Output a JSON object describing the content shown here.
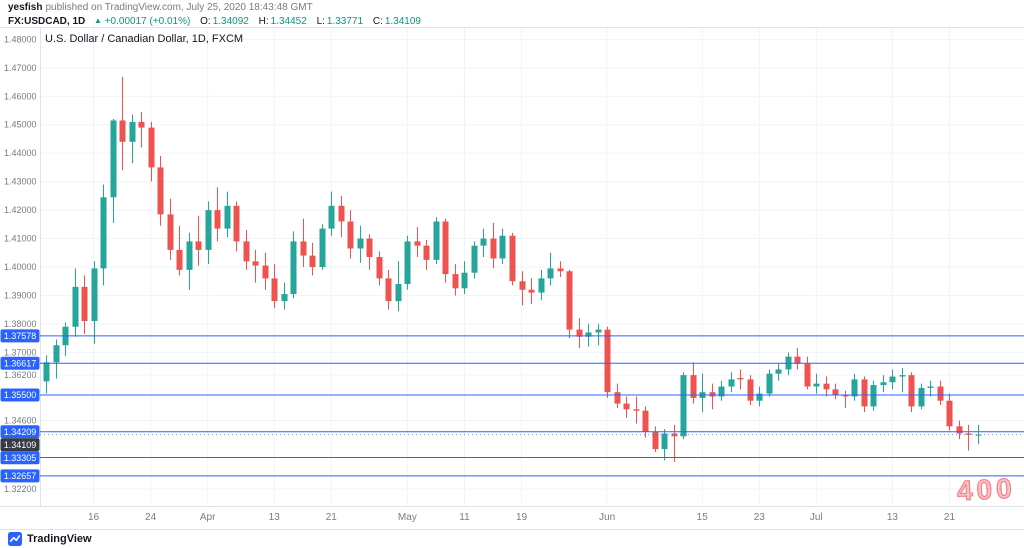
{
  "header": {
    "author": "yesfish",
    "published": "published on TradingView.com, July 25, 2020 18:43:48 GMT",
    "symbol": "FX:USDCAD, 1D",
    "arrow": "▲",
    "change": "+0.00017 (+0.01%)",
    "ohlc": {
      "o_label": "O:",
      "o_value": "1.34092",
      "h_label": "H:",
      "h_value": "1.34452",
      "l_label": "L:",
      "l_value": "1.33771",
      "c_label": "C:",
      "c_value": "1.34109"
    }
  },
  "legend": {
    "title": "U.S. Dollar / Canadian Dollar, 1D, FXCM"
  },
  "footer": {
    "brand": "TradingView"
  },
  "watermark": {
    "text": "400"
  },
  "colors": {
    "up": "#26a69a",
    "down": "#ef5350",
    "line_blue": "#2962ff",
    "grid": "#f0f3fa",
    "border": "#e0e3eb",
    "axis_text": "#787b86",
    "dark": "#131722",
    "green_text": "#089981",
    "badge_last": "#363a45"
  },
  "chart_data": {
    "type": "candlestick",
    "title": "U.S. Dollar / Canadian Dollar",
    "symbol": "USDCAD",
    "interval": "1D",
    "exchange": "FXCM",
    "grid": true,
    "ylim": [
      1.316,
      1.484
    ],
    "y_ticks": [
      {
        "price": 1.48,
        "label": "1.48000"
      },
      {
        "price": 1.47,
        "label": "1.47000"
      },
      {
        "price": 1.46,
        "label": "1.46000"
      },
      {
        "price": 1.45,
        "label": "1.45000"
      },
      {
        "price": 1.44,
        "label": "1.44000"
      },
      {
        "price": 1.43,
        "label": "1.43000"
      },
      {
        "price": 1.42,
        "label": "1.42000"
      },
      {
        "price": 1.41,
        "label": "1.41000"
      },
      {
        "price": 1.4,
        "label": "1.40000"
      },
      {
        "price": 1.39,
        "label": "1.39000"
      },
      {
        "price": 1.38,
        "label": "1.38000"
      },
      {
        "price": 1.37,
        "label": "1.37000"
      },
      {
        "price": 1.362,
        "label": "1.36200"
      },
      {
        "price": 1.346,
        "label": "1.34600"
      },
      {
        "price": 1.322,
        "label": "1.32200"
      }
    ],
    "x_ticks": [
      {
        "index": 5,
        "label": "16"
      },
      {
        "index": 11,
        "label": "24"
      },
      {
        "index": 17,
        "label": "Apr"
      },
      {
        "index": 24,
        "label": "13"
      },
      {
        "index": 30,
        "label": "21"
      },
      {
        "index": 38,
        "label": "May"
      },
      {
        "index": 44,
        "label": "11"
      },
      {
        "index": 50,
        "label": "19"
      },
      {
        "index": 59,
        "label": "Jun"
      },
      {
        "index": 69,
        "label": "15"
      },
      {
        "index": 75,
        "label": "23"
      },
      {
        "index": 81,
        "label": "Jul"
      },
      {
        "index": 89,
        "label": "13"
      },
      {
        "index": 95,
        "label": "21"
      }
    ],
    "price_lines": [
      {
        "price": 1.37578,
        "label": "1.37578"
      },
      {
        "price": 1.36617,
        "label": "1.36617"
      },
      {
        "price": 1.355,
        "label": "1.35500"
      },
      {
        "price": 1.34209,
        "label": "1.34209"
      },
      {
        "price": 1.33305,
        "label": "1.33305"
      },
      {
        "price": 1.32657,
        "label": "1.32657"
      }
    ],
    "last_price": {
      "price": 1.34109,
      "label": "1.34109"
    },
    "dates": [
      "2020-03-09",
      "2020-03-10",
      "2020-03-11",
      "2020-03-12",
      "2020-03-13",
      "2020-03-16",
      "2020-03-17",
      "2020-03-18",
      "2020-03-19",
      "2020-03-20",
      "2020-03-23",
      "2020-03-24",
      "2020-03-25",
      "2020-03-26",
      "2020-03-27",
      "2020-03-30",
      "2020-03-31",
      "2020-04-01",
      "2020-04-02",
      "2020-04-03",
      "2020-04-06",
      "2020-04-07",
      "2020-04-08",
      "2020-04-09",
      "2020-04-13",
      "2020-04-14",
      "2020-04-15",
      "2020-04-16",
      "2020-04-17",
      "2020-04-20",
      "2020-04-21",
      "2020-04-22",
      "2020-04-23",
      "2020-04-24",
      "2020-04-27",
      "2020-04-28",
      "2020-04-29",
      "2020-04-30",
      "2020-05-01",
      "2020-05-04",
      "2020-05-05",
      "2020-05-06",
      "2020-05-07",
      "2020-05-08",
      "2020-05-11",
      "2020-05-12",
      "2020-05-13",
      "2020-05-14",
      "2020-05-15",
      "2020-05-18",
      "2020-05-19",
      "2020-05-20",
      "2020-05-21",
      "2020-05-22",
      "2020-05-25",
      "2020-05-26",
      "2020-05-27",
      "2020-05-28",
      "2020-05-29",
      "2020-06-01",
      "2020-06-02",
      "2020-06-03",
      "2020-06-04",
      "2020-06-05",
      "2020-06-08",
      "2020-06-09",
      "2020-06-10",
      "2020-06-11",
      "2020-06-12",
      "2020-06-15",
      "2020-06-16",
      "2020-06-17",
      "2020-06-18",
      "2020-06-19",
      "2020-06-22",
      "2020-06-23",
      "2020-06-24",
      "2020-06-25",
      "2020-06-26",
      "2020-06-29",
      "2020-06-30",
      "2020-07-01",
      "2020-07-02",
      "2020-07-03",
      "2020-07-06",
      "2020-07-07",
      "2020-07-08",
      "2020-07-09",
      "2020-07-10",
      "2020-07-13",
      "2020-07-14",
      "2020-07-15",
      "2020-07-16",
      "2020-07-17",
      "2020-07-20",
      "2020-07-21",
      "2020-07-22",
      "2020-07-23",
      "2020-07-24"
    ],
    "ohlc": [
      [
        1.3598,
        1.369,
        1.3555,
        1.3665
      ],
      [
        1.3665,
        1.3745,
        1.3608,
        1.3725
      ],
      [
        1.3725,
        1.3805,
        1.3688,
        1.379
      ],
      [
        1.379,
        1.3995,
        1.3755,
        1.393
      ],
      [
        1.393,
        1.397,
        1.3765,
        1.381
      ],
      [
        1.381,
        1.402,
        1.373,
        1.3995
      ],
      [
        1.3995,
        1.429,
        1.3935,
        1.4245
      ],
      [
        1.4245,
        1.452,
        1.4155,
        1.4515
      ],
      [
        1.4515,
        1.4668,
        1.434,
        1.444
      ],
      [
        1.444,
        1.4535,
        1.4365,
        1.451
      ],
      [
        1.451,
        1.4545,
        1.442,
        1.449
      ],
      [
        1.449,
        1.451,
        1.43,
        1.435
      ],
      [
        1.435,
        1.439,
        1.4145,
        1.4185
      ],
      [
        1.4185,
        1.424,
        1.4025,
        1.406
      ],
      [
        1.406,
        1.4145,
        1.397,
        1.399
      ],
      [
        1.399,
        1.412,
        1.392,
        1.409
      ],
      [
        1.409,
        1.418,
        1.4005,
        1.406
      ],
      [
        1.406,
        1.423,
        1.401,
        1.42
      ],
      [
        1.42,
        1.428,
        1.409,
        1.4135
      ],
      [
        1.4135,
        1.4265,
        1.4105,
        1.4215
      ],
      [
        1.4215,
        1.423,
        1.4055,
        1.409
      ],
      [
        1.409,
        1.413,
        1.399,
        1.402
      ],
      [
        1.402,
        1.406,
        1.3945,
        1.4005
      ],
      [
        1.4005,
        1.405,
        1.392,
        1.396
      ],
      [
        1.396,
        1.401,
        1.3855,
        1.388
      ],
      [
        1.388,
        1.3945,
        1.385,
        1.3905
      ],
      [
        1.3905,
        1.4125,
        1.389,
        1.409
      ],
      [
        1.409,
        1.417,
        1.4,
        1.404
      ],
      [
        1.404,
        1.4085,
        1.397,
        1.4
      ],
      [
        1.4,
        1.415,
        1.399,
        1.4135
      ],
      [
        1.4135,
        1.4265,
        1.411,
        1.4215
      ],
      [
        1.4215,
        1.425,
        1.4105,
        1.416
      ],
      [
        1.416,
        1.42,
        1.403,
        1.4065
      ],
      [
        1.4065,
        1.4145,
        1.4015,
        1.41
      ],
      [
        1.41,
        1.4115,
        1.399,
        1.4035
      ],
      [
        1.4035,
        1.4055,
        1.3935,
        1.396
      ],
      [
        1.396,
        1.399,
        1.385,
        1.388
      ],
      [
        1.388,
        1.402,
        1.3845,
        1.394
      ],
      [
        1.394,
        1.411,
        1.392,
        1.409
      ],
      [
        1.409,
        1.414,
        1.4035,
        1.4075
      ],
      [
        1.4075,
        1.4095,
        1.399,
        1.4025
      ],
      [
        1.4025,
        1.4175,
        1.401,
        1.416
      ],
      [
        1.416,
        1.417,
        1.3945,
        1.3975
      ],
      [
        1.3975,
        1.401,
        1.39,
        1.3925
      ],
      [
        1.3925,
        1.402,
        1.3905,
        1.398
      ],
      [
        1.398,
        1.409,
        1.396,
        1.4075
      ],
      [
        1.4075,
        1.4135,
        1.4035,
        1.41
      ],
      [
        1.41,
        1.4155,
        1.3995,
        1.403
      ],
      [
        1.403,
        1.4135,
        1.401,
        1.411
      ],
      [
        1.411,
        1.412,
        1.3935,
        1.395
      ],
      [
        1.395,
        1.3985,
        1.3865,
        1.392
      ],
      [
        1.392,
        1.396,
        1.387,
        1.391
      ],
      [
        1.391,
        1.399,
        1.3885,
        1.396
      ],
      [
        1.396,
        1.405,
        1.3935,
        1.3995
      ],
      [
        1.3995,
        1.402,
        1.3965,
        1.3985
      ],
      [
        1.3985,
        1.399,
        1.375,
        1.378
      ],
      [
        1.378,
        1.382,
        1.3715,
        1.3755
      ],
      [
        1.3755,
        1.38,
        1.372,
        1.377
      ],
      [
        1.377,
        1.38,
        1.3725,
        1.378
      ],
      [
        1.378,
        1.379,
        1.354,
        1.356
      ],
      [
        1.356,
        1.359,
        1.3505,
        1.352
      ],
      [
        1.352,
        1.3545,
        1.347,
        1.35
      ],
      [
        1.35,
        1.3545,
        1.345,
        1.3495
      ],
      [
        1.3495,
        1.351,
        1.34,
        1.342
      ],
      [
        1.342,
        1.344,
        1.335,
        1.336
      ],
      [
        1.336,
        1.343,
        1.332,
        1.3415
      ],
      [
        1.3415,
        1.3445,
        1.3315,
        1.3405
      ],
      [
        1.3405,
        1.363,
        1.3395,
        1.362
      ],
      [
        1.362,
        1.3665,
        1.352,
        1.354
      ],
      [
        1.354,
        1.3625,
        1.349,
        1.356
      ],
      [
        1.356,
        1.359,
        1.35,
        1.3545
      ],
      [
        1.3545,
        1.36,
        1.353,
        1.358
      ],
      [
        1.358,
        1.363,
        1.356,
        1.3605
      ],
      [
        1.361,
        1.364,
        1.357,
        1.3605
      ],
      [
        1.3605,
        1.362,
        1.3515,
        1.353
      ],
      [
        1.353,
        1.358,
        1.351,
        1.3555
      ],
      [
        1.3555,
        1.364,
        1.3545,
        1.3625
      ],
      [
        1.3625,
        1.366,
        1.36,
        1.364
      ],
      [
        1.364,
        1.37,
        1.362,
        1.3685
      ],
      [
        1.3685,
        1.3715,
        1.364,
        1.366
      ],
      [
        1.366,
        1.3685,
        1.357,
        1.358
      ],
      [
        1.358,
        1.3625,
        1.3555,
        1.359
      ],
      [
        1.359,
        1.3615,
        1.3545,
        1.357
      ],
      [
        1.357,
        1.359,
        1.3535,
        1.355
      ],
      [
        1.355,
        1.3565,
        1.3505,
        1.3545
      ],
      [
        1.3545,
        1.3625,
        1.353,
        1.3605
      ],
      [
        1.3605,
        1.3615,
        1.349,
        1.351
      ],
      [
        1.351,
        1.36,
        1.3495,
        1.3585
      ],
      [
        1.3585,
        1.362,
        1.356,
        1.3595
      ],
      [
        1.3595,
        1.364,
        1.357,
        1.3615
      ],
      [
        1.3615,
        1.3645,
        1.356,
        1.362
      ],
      [
        1.362,
        1.363,
        1.349,
        1.351
      ],
      [
        1.351,
        1.359,
        1.35,
        1.3575
      ],
      [
        1.3575,
        1.36,
        1.3545,
        1.358
      ],
      [
        1.358,
        1.36,
        1.3515,
        1.353
      ],
      [
        1.353,
        1.3555,
        1.3425,
        1.344
      ],
      [
        1.344,
        1.346,
        1.3395,
        1.3415
      ],
      [
        1.3415,
        1.3445,
        1.3355,
        1.341
      ],
      [
        1.34092,
        1.34452,
        1.33771,
        1.34109
      ]
    ]
  }
}
